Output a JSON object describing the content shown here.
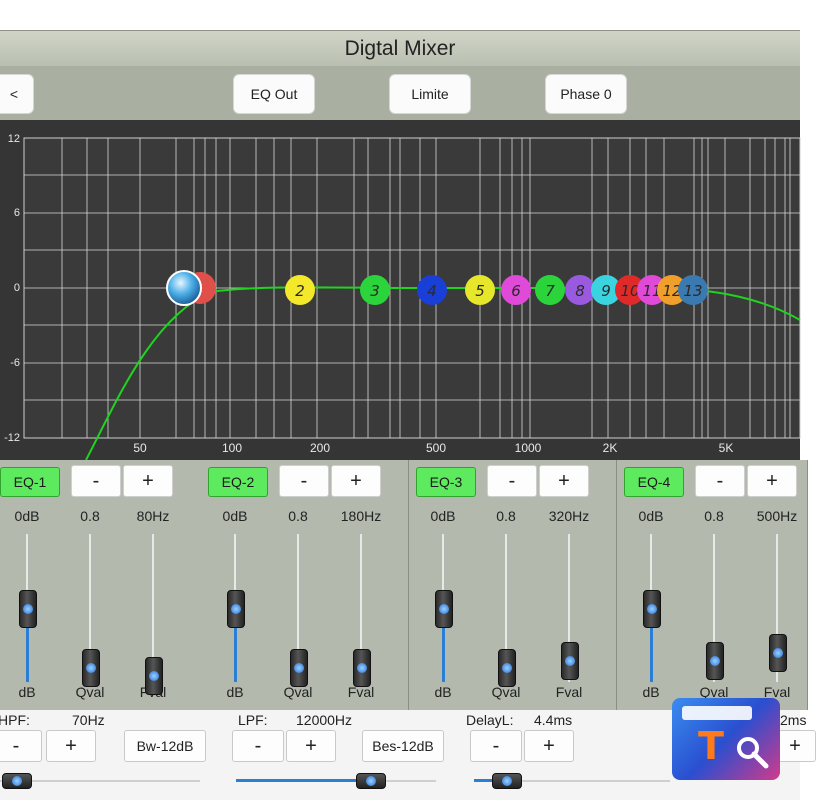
{
  "window": {
    "title": "Digtal Mixer"
  },
  "toolbar": {
    "back_label": "<",
    "eq_out_label": "EQ Out",
    "limite_label": "Limite",
    "phase_label": "Phase 0"
  },
  "graph": {
    "y_ticks": [
      "12",
      "6",
      "0",
      "-6",
      "-12"
    ],
    "x_ticks": [
      "50",
      "100",
      "200",
      "500",
      "1000",
      "2K",
      "5K"
    ],
    "nodes": [
      "2",
      "3",
      "4",
      "5",
      "6",
      "7",
      "8",
      "9",
      "10",
      "11",
      "12",
      "13"
    ],
    "curve_color": "#1fd41f"
  },
  "eq_bands": [
    {
      "label": "EQ-1",
      "minus": "-",
      "plus": "+",
      "gain": "0dB",
      "q": "0.8",
      "freq": "80Hz",
      "gain_label": "dB",
      "q_label": "Qval",
      "freq_label": "Fval",
      "gain_level": 0.5,
      "q_level": 0.1,
      "freq_level": 0.05
    },
    {
      "label": "EQ-2",
      "minus": "-",
      "plus": "+",
      "gain": "0dB",
      "q": "0.8",
      "freq": "180Hz",
      "gain_label": "dB",
      "q_label": "Qval",
      "freq_label": "Fval",
      "gain_level": 0.5,
      "q_level": 0.1,
      "freq_level": 0.1
    },
    {
      "label": "EQ-3",
      "minus": "-",
      "plus": "+",
      "gain": "0dB",
      "q": "0.8",
      "freq": "320Hz",
      "gain_label": "dB",
      "q_label": "Qval",
      "freq_label": "Fval",
      "gain_level": 0.5,
      "q_level": 0.1,
      "freq_level": 0.15
    },
    {
      "label": "EQ-4",
      "minus": "-",
      "plus": "+",
      "gain": "0dB",
      "q": "0.8",
      "freq": "500Hz",
      "gain_label": "dB",
      "q_label": "Qval",
      "freq_label": "Fval",
      "gain_level": 0.5,
      "q_level": 0.15,
      "freq_level": 0.2
    }
  ],
  "bottom": {
    "hpf_label": "HPF:",
    "hpf_value": "70Hz",
    "hpf_mode": "Bw-12dB",
    "lpf_label": "LPF:",
    "lpf_value": "12000Hz",
    "lpf_mode": "Bes-12dB",
    "delay_label": "DelayL:",
    "delay_value": "4.4ms",
    "delay_extra": "2ms",
    "minus": "-",
    "plus": "+"
  },
  "logo": {
    "letter": "T",
    "icon": "watermark-logo-icon"
  }
}
